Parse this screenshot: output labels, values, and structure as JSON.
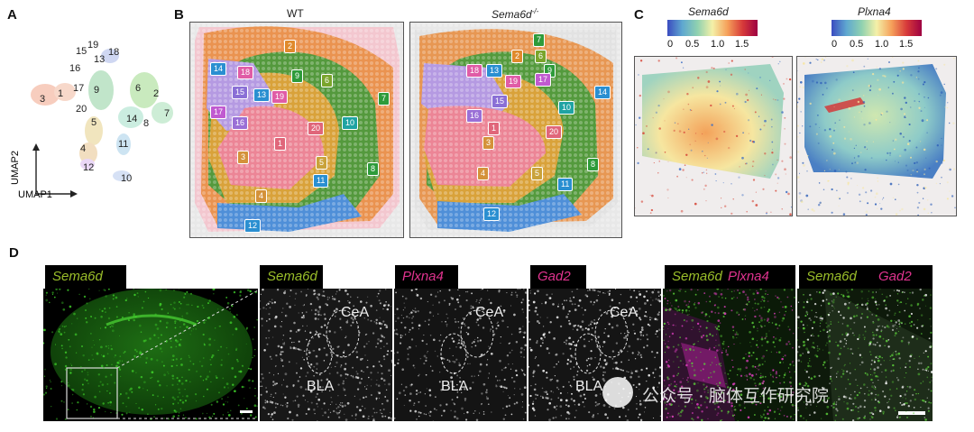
{
  "panels": {
    "a": "A",
    "b": "B",
    "c": "C",
    "d": "D"
  },
  "umap": {
    "axis_y": "UMAP2",
    "axis_x": "UMAP1",
    "clusters": [
      "19",
      "15",
      "18",
      "13",
      "16",
      "17",
      "9",
      "3",
      "1",
      "6",
      "2",
      "20",
      "5",
      "14",
      "8",
      "7",
      "4",
      "11",
      "12",
      "10"
    ]
  },
  "spatial": {
    "wt_title": "WT",
    "ko_title_gene": "Sema6d",
    "ko_title_sup": "-/-",
    "wt_tags": [
      {
        "id": "14",
        "c": "#2a8fd1"
      },
      {
        "id": "2",
        "c": "#e08a2c"
      },
      {
        "id": "18",
        "c": "#e05ca6"
      },
      {
        "id": "9",
        "c": "#2e9b3a"
      },
      {
        "id": "6",
        "c": "#7aa52c"
      },
      {
        "id": "15",
        "c": "#8a6fd6"
      },
      {
        "id": "13",
        "c": "#2a8fd1"
      },
      {
        "id": "19",
        "c": "#e05ca6"
      },
      {
        "id": "7",
        "c": "#2e9b3a"
      },
      {
        "id": "17",
        "c": "#c05ad0"
      },
      {
        "id": "16",
        "c": "#9a6fd6"
      },
      {
        "id": "20",
        "c": "#e0667a"
      },
      {
        "id": "10",
        "c": "#1fa3a3"
      },
      {
        "id": "1",
        "c": "#e0667a"
      },
      {
        "id": "3",
        "c": "#d4923a"
      },
      {
        "id": "5",
        "c": "#c9a23a"
      },
      {
        "id": "8",
        "c": "#2e9b3a"
      },
      {
        "id": "11",
        "c": "#2a8fd1"
      },
      {
        "id": "4",
        "c": "#d4923a"
      },
      {
        "id": "12",
        "c": "#2a8fd1"
      }
    ],
    "ko_tags": [
      {
        "id": "7",
        "c": "#2e9b3a"
      },
      {
        "id": "2",
        "c": "#e08a2c"
      },
      {
        "id": "6",
        "c": "#7aa52c"
      },
      {
        "id": "9",
        "c": "#2e9b3a"
      },
      {
        "id": "18",
        "c": "#e05ca6"
      },
      {
        "id": "13",
        "c": "#2a8fd1"
      },
      {
        "id": "19",
        "c": "#e05ca6"
      },
      {
        "id": "17",
        "c": "#c05ad0"
      },
      {
        "id": "14",
        "c": "#2a8fd1"
      },
      {
        "id": "15",
        "c": "#8a6fd6"
      },
      {
        "id": "10",
        "c": "#1fa3a3"
      },
      {
        "id": "16",
        "c": "#9a6fd6"
      },
      {
        "id": "1",
        "c": "#e0667a"
      },
      {
        "id": "20",
        "c": "#e0667a"
      },
      {
        "id": "3",
        "c": "#d4923a"
      },
      {
        "id": "8",
        "c": "#2e9b3a"
      },
      {
        "id": "4",
        "c": "#d4923a"
      },
      {
        "id": "5",
        "c": "#c9a23a"
      },
      {
        "id": "11",
        "c": "#2a8fd1"
      },
      {
        "id": "12",
        "c": "#2a8fd1"
      }
    ]
  },
  "expression": {
    "gene1": "Sema6d",
    "gene2": "Plxna4",
    "ticks": [
      "0",
      "0.5",
      "1.0",
      "1.5"
    ]
  },
  "fish": {
    "overview_gene": "Sema6d",
    "headers": [
      {
        "genes": [
          {
            "t": "Sema6d",
            "c": "#9bbf2a"
          }
        ]
      },
      {
        "genes": [
          {
            "t": "Plxna4",
            "c": "#e0338f"
          }
        ]
      },
      {
        "genes": [
          {
            "t": "Gad2",
            "c": "#e0338f"
          }
        ]
      },
      {
        "genes": [
          {
            "t": "Sema6d",
            "c": "#9bbf2a"
          },
          {
            "t": "Plxna4",
            "c": "#e0338f"
          }
        ]
      },
      {
        "genes": [
          {
            "t": "Sema6d",
            "c": "#9bbf2a"
          },
          {
            "t": "Gad2",
            "c": "#e0338f"
          }
        ]
      }
    ],
    "region_cea": "CeA",
    "region_bla": "BLA"
  },
  "watermark": "公众号 · 脑体互作研究院"
}
